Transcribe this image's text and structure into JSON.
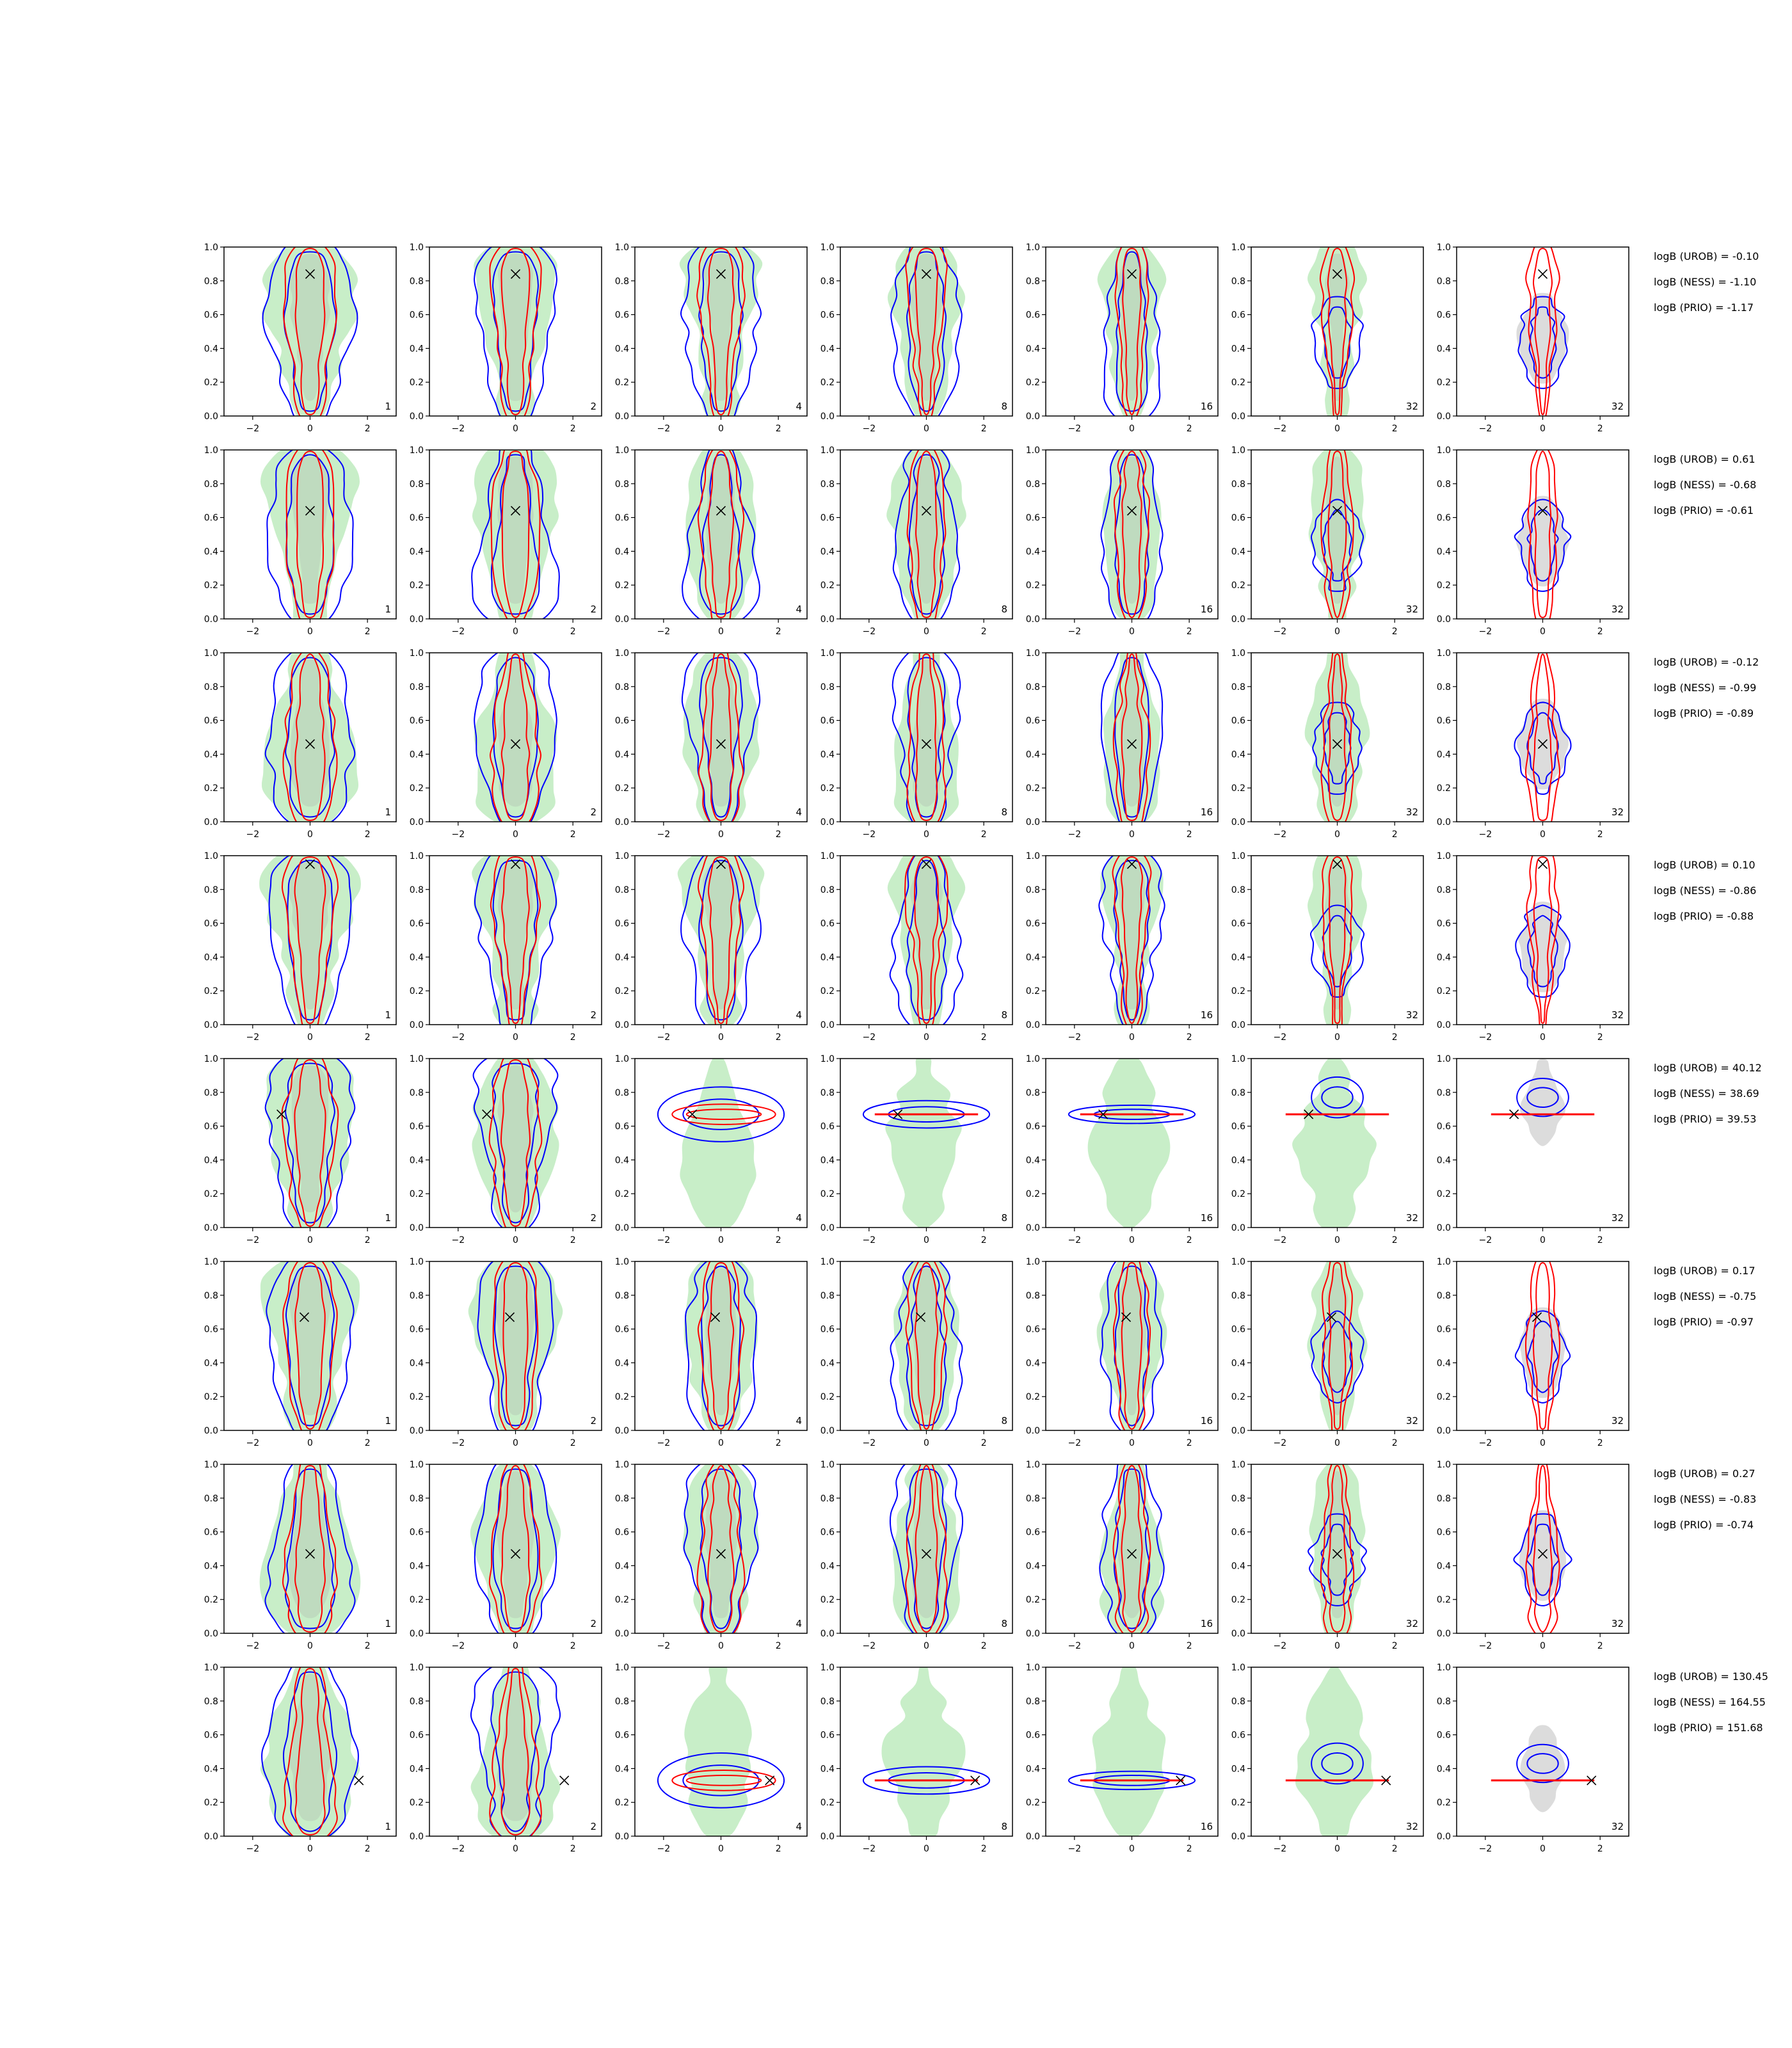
{
  "figure": {
    "row_annotations": [
      [
        "logB (UROB) = -0.10",
        "logB (NESS) = -1.10",
        "logB (PRIO) = -1.17"
      ],
      [
        "logB (UROB) = 0.61",
        "logB (NESS) = -0.68",
        "logB (PRIO) = -0.61"
      ],
      [
        "logB (UROB) = -0.12",
        "logB (NESS) = -0.99",
        "logB (PRIO) = -0.89"
      ],
      [
        "logB (UROB) = 0.10",
        "logB (NESS) = -0.86",
        "logB (PRIO) = -0.88"
      ],
      [
        "logB (UROB) = 40.12",
        "logB (NESS) = 38.69",
        "logB (PRIO) = 39.53"
      ],
      [
        "logB (UROB) = 0.17",
        "logB (NESS) = -0.75",
        "logB (PRIO) = -0.97"
      ],
      [
        "logB (UROB) = 0.27",
        "logB (NESS) = -0.83",
        "logB (PRIO) = -0.74"
      ],
      [
        "logB (UROB) = 130.45",
        "logB (NESS) = 164.55",
        "logB (PRIO) = 151.68"
      ]
    ],
    "colors": {
      "fill_main": "#c8eec8",
      "fill_inner": "#b9cfb9",
      "fill_grey": "#dcdcdc",
      "blue": "#0000ff",
      "red": "#ff0000",
      "marker": "#000000"
    }
  },
  "chart_data": {
    "type": "contour-grid",
    "rows": 8,
    "cols": 7,
    "xlim": [
      -3,
      3
    ],
    "ylim": [
      0.0,
      1.0
    ],
    "xticks": [
      "−2",
      "0",
      "2"
    ],
    "yticks": [
      "0.0",
      "0.2",
      "0.4",
      "0.6",
      "0.8",
      "1.0"
    ],
    "panel_labels": [
      "1",
      "2",
      "4",
      "8",
      "16",
      "32",
      "32"
    ],
    "truth": [
      {
        "x": 0.0,
        "y": 0.84
      },
      {
        "x": 0.0,
        "y": 0.64
      },
      {
        "x": 0.0,
        "y": 0.46
      },
      {
        "x": 0.0,
        "y": 0.95
      },
      {
        "x": -1.0,
        "y": 0.67
      },
      {
        "x": -0.2,
        "y": 0.67
      },
      {
        "x": 0.0,
        "y": 0.47
      },
      {
        "x": 1.7,
        "y": 0.33
      }
    ]
  }
}
